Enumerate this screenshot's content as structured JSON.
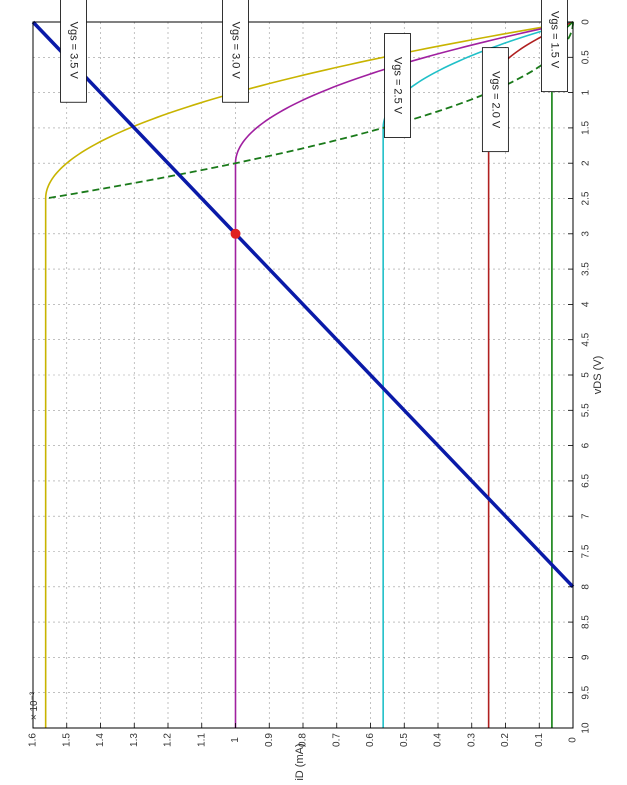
{
  "chart_data": {
    "type": "line",
    "orientation": "rotated-90",
    "title": "",
    "xlabel": "vDS (V)",
    "ylabel": "iD (mA)",
    "y_exponent_label": "× 10⁻³",
    "xlim": [
      0,
      10
    ],
    "ylim": [
      0,
      1.6
    ],
    "x_ticks": [
      "0",
      "0.5",
      "1",
      "1.5",
      "2",
      "2.5",
      "3",
      "3.5",
      "4",
      "4.5",
      "5",
      "5.5",
      "6",
      "6.5",
      "7",
      "7.5",
      "8",
      "8.5",
      "9",
      "9.5",
      "10"
    ],
    "y_ticks": [
      "0",
      "0.1",
      "0.2",
      "0.3",
      "0.4",
      "0.5",
      "0.6",
      "0.7",
      "0.8",
      "0.9",
      "1",
      "1.1",
      "1.2",
      "1.3",
      "1.4",
      "1.5",
      "1.6"
    ],
    "grid": true,
    "series": [
      {
        "label": "Vgs = 3.5 V",
        "vov": 2.5,
        "isat": 1.5625,
        "color": "#c8b400",
        "label_pos": [
          0.4,
          1.48
        ]
      },
      {
        "label": "Vgs = 3.0 V",
        "vov": 2.0,
        "isat": 1.0,
        "color": "#a020a0",
        "label_pos": [
          0.4,
          1.0
        ]
      },
      {
        "label": "Vgs = 2.5 V",
        "vov": 1.5,
        "isat": 0.5625,
        "color": "#20c0c8",
        "label_pos": [
          0.9,
          0.52
        ]
      },
      {
        "label": "Vgs = 2.0 V",
        "vov": 1.0,
        "isat": 0.25,
        "color": "#b02020",
        "label_pos": [
          1.1,
          0.23
        ]
      },
      {
        "label": "Vgs = 1.5 V",
        "vov": 0.5,
        "isat": 0.0625,
        "color": "#108010",
        "label_pos": [
          0.25,
          0.055
        ]
      }
    ],
    "saturation_boundary": {
      "color": "#1a7a1a",
      "style": "dashed",
      "x_max": 2.5
    },
    "load_line": {
      "x": [
        0,
        8
      ],
      "y": [
        1.6,
        0
      ],
      "color": "#0a1aa8"
    },
    "operating_point": {
      "x": 3,
      "y": 1.0,
      "color": "#e02020"
    }
  }
}
